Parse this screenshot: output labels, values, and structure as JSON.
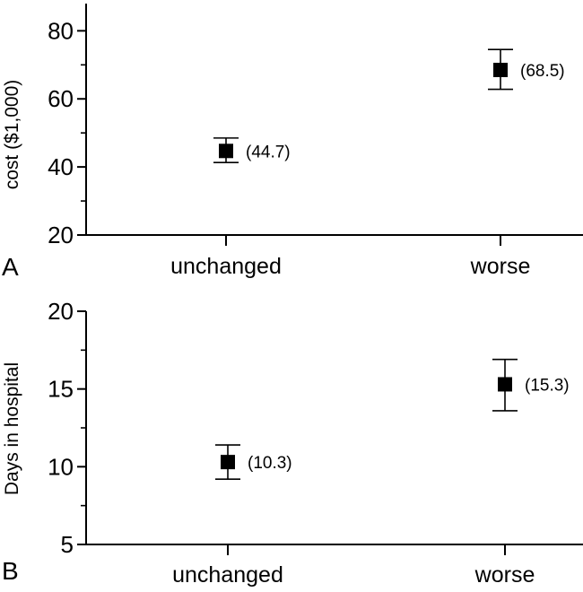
{
  "chart_data": [
    {
      "type": "scatter",
      "panel_label": "A",
      "title": "",
      "xlabel": "",
      "ylabel": "cost ($1,000)",
      "categories": [
        "unchanged",
        "worse"
      ],
      "ylim": [
        20,
        88
      ],
      "yticks": [
        20,
        40,
        60,
        80
      ],
      "yticks_minor": [
        30,
        50,
        70
      ],
      "grid": false,
      "legend": "none",
      "series": [
        {
          "values": [
            44.7,
            68.5
          ],
          "error_low": [
            41.3,
            62.8
          ],
          "error_high": [
            48.5,
            74.5
          ],
          "labels": [
            "(44.7)",
            "(68.5)"
          ]
        }
      ]
    },
    {
      "type": "scatter",
      "panel_label": "B",
      "title": "",
      "xlabel": "",
      "ylabel": "Days in hospital",
      "categories": [
        "unchanged",
        "worse"
      ],
      "ylim": [
        5,
        20
      ],
      "yticks": [
        5,
        10,
        15,
        20
      ],
      "yticks_minor": [
        7.5,
        12.5,
        17.5
      ],
      "grid": false,
      "legend": "none",
      "series": [
        {
          "values": [
            10.3,
            15.3
          ],
          "error_low": [
            9.2,
            13.6
          ],
          "error_high": [
            11.4,
            16.9
          ],
          "labels": [
            "(10.3)",
            "(15.3)"
          ]
        }
      ]
    }
  ]
}
